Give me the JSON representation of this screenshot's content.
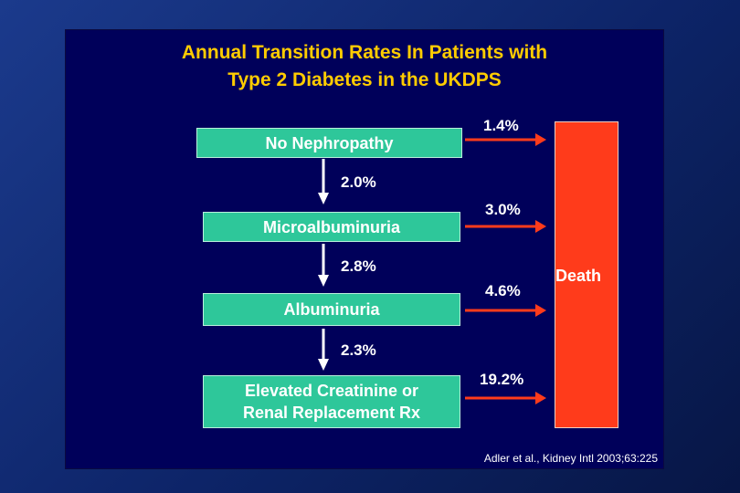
{
  "title": {
    "line1": "Annual Transition Rates In Patients with",
    "line2": "Type 2 Diabetes in the UKDPS"
  },
  "stages": [
    {
      "lines": [
        "No Nephropathy"
      ]
    },
    {
      "lines": [
        "Microalbuminuria"
      ]
    },
    {
      "lines": [
        "Albuminuria"
      ]
    },
    {
      "lines": [
        "Elevated Creatinine or",
        "Renal Replacement Rx"
      ]
    }
  ],
  "progression_rates": [
    "2.0%",
    "2.8%",
    "2.3%"
  ],
  "death_rates": [
    "1.4%",
    "3.0%",
    "4.6%",
    "19.2%"
  ],
  "death_label": "Death",
  "citation": "Adler et al., Kidney Intl 2003;63:225",
  "colors": {
    "title": "#ffcc00",
    "stage_fill": "#2ec79a",
    "death_fill": "#ff3b1b",
    "arrow_red": "#ff3b1b",
    "arrow_white": "#ffffff",
    "slide_bg": "#00005a"
  }
}
